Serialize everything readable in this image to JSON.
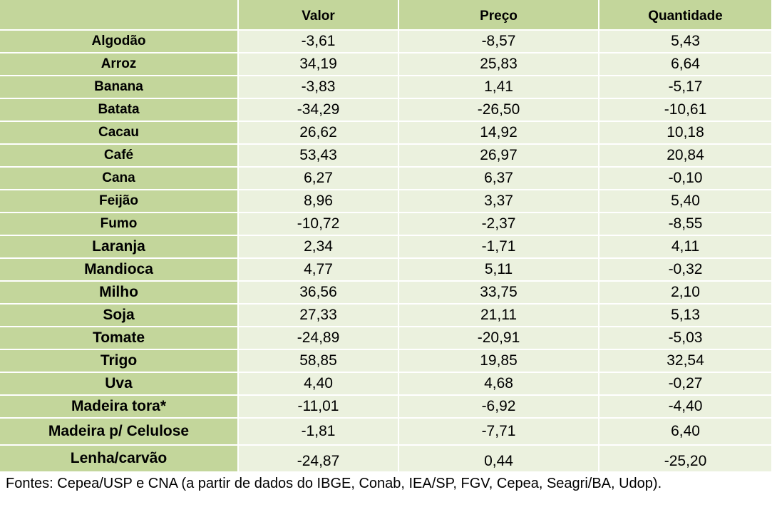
{
  "table": {
    "headers": [
      "",
      "Valor",
      "Preço",
      "Quantidade"
    ],
    "rows": [
      {
        "label": "Algodão",
        "valor": "-3,61",
        "preco": "-8,57",
        "quantidade": "5,43"
      },
      {
        "label": "Arroz",
        "valor": "34,19",
        "preco": "25,83",
        "quantidade": "6,64"
      },
      {
        "label": "Banana",
        "valor": "-3,83",
        "preco": "1,41",
        "quantidade": "-5,17"
      },
      {
        "label": "Batata",
        "valor": "-34,29",
        "preco": "-26,50",
        "quantidade": "-10,61"
      },
      {
        "label": "Cacau",
        "valor": "26,62",
        "preco": "14,92",
        "quantidade": "10,18"
      },
      {
        "label": "Café",
        "valor": "53,43",
        "preco": "26,97",
        "quantidade": "20,84"
      },
      {
        "label": "Cana",
        "valor": "6,27",
        "preco": "6,37",
        "quantidade": "-0,10"
      },
      {
        "label": "Feijão",
        "valor": "8,96",
        "preco": "3,37",
        "quantidade": "5,40"
      },
      {
        "label": "Fumo",
        "valor": "-10,72",
        "preco": "-2,37",
        "quantidade": "-8,55"
      },
      {
        "label": "Laranja",
        "valor": "2,34",
        "preco": "-1,71",
        "quantidade": "4,11"
      },
      {
        "label": "Mandioca",
        "valor": "4,77",
        "preco": "5,11",
        "quantidade": "-0,32"
      },
      {
        "label": "Milho",
        "valor": "36,56",
        "preco": "33,75",
        "quantidade": "2,10"
      },
      {
        "label": "Soja",
        "valor": "27,33",
        "preco": "21,11",
        "quantidade": "5,13"
      },
      {
        "label": "Tomate",
        "valor": "-24,89",
        "preco": "-20,91",
        "quantidade": "-5,03"
      },
      {
        "label": "Trigo",
        "valor": "58,85",
        "preco": "19,85",
        "quantidade": "32,54"
      },
      {
        "label": "Uva",
        "valor": "4,40",
        "preco": "4,68",
        "quantidade": "-0,27"
      },
      {
        "label": "Madeira tora*",
        "valor": "-11,01",
        "preco": "-6,92",
        "quantidade": "-4,40"
      },
      {
        "label": "Madeira p/ Celulose",
        "valor": "-1,81",
        "preco": "-7,71",
        "quantidade": "6,40"
      },
      {
        "label": "Lenha/carvão",
        "valor": "-24,87",
        "preco": "0,44",
        "quantidade": "-25,20"
      }
    ]
  },
  "source": "Fontes: Cepea/USP e CNA (a partir de dados do IBGE, Conab, IEA/SP, FGV, Cepea, Seagri/BA, Udop).",
  "colors": {
    "header_bg": "#c3d69b",
    "cell_bg": "#ebf1de"
  }
}
